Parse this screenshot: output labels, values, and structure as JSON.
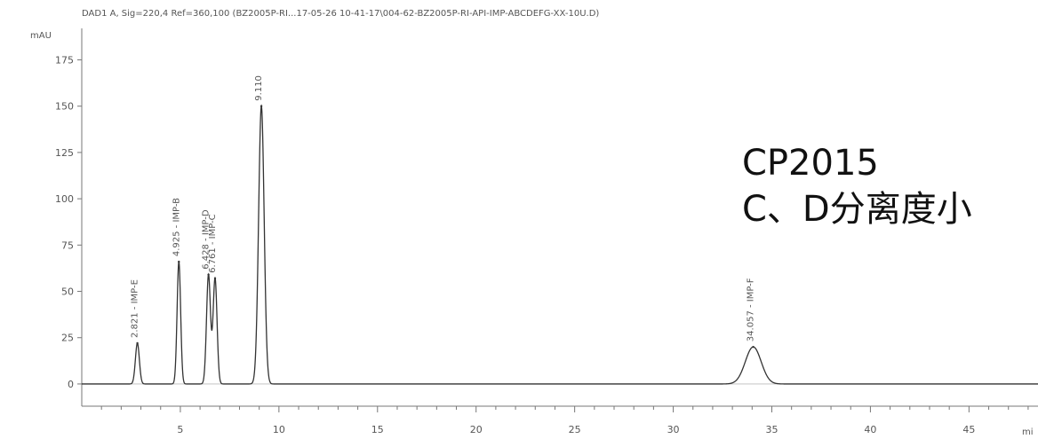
{
  "header": {
    "title": "DAD1 A, Sig=220,4 Ref=360,100 (BZ2005P-RI...17-05-26 10-41-17\\004-62-BZ2005P-RI-API-IMP-ABCDEFG-XX-10U.D)"
  },
  "annotation": {
    "line1": "CP2015",
    "line2": "C、D分离度小"
  },
  "chart_data": {
    "type": "line",
    "title": "DAD1 A, Sig=220,4 Ref=360,100 (BZ2005P-RI...17-05-26 10-41-17\\004-62-BZ2005P-RI-API-IMP-ABCDEFG-XX-10U.D)",
    "ylabel": "mAU",
    "xlabel": "mi",
    "xlim": [
      0,
      48.5
    ],
    "ylim": [
      -12,
      192
    ],
    "x_ticks": [
      5,
      10,
      15,
      20,
      25,
      30,
      35,
      40,
      45
    ],
    "x_tick_labels": [
      "5",
      "10",
      "15",
      "20",
      "25",
      "30",
      "35",
      "40",
      "45"
    ],
    "y_ticks": [
      0,
      25,
      50,
      75,
      100,
      125,
      150,
      175
    ],
    "y_tick_labels": [
      "0",
      "25",
      "50",
      "75",
      "100",
      "125",
      "150",
      "175"
    ],
    "grid": false,
    "baseline": 0,
    "series_color": "#333333",
    "peaks": [
      {
        "rt": 2.821,
        "height": 22,
        "width": 0.1,
        "label": "2.821 - IMP-E"
      },
      {
        "rt": 4.925,
        "height": 66,
        "width": 0.09,
        "label": "4.925 - IMP-B"
      },
      {
        "rt": 6.428,
        "height": 59,
        "width": 0.1,
        "label": "6.428 - IMP-D"
      },
      {
        "rt": 6.761,
        "height": 57,
        "width": 0.1,
        "label": "6.761 - IMP-C"
      },
      {
        "rt": 9.11,
        "height": 150,
        "width": 0.14,
        "label": "9.110"
      },
      {
        "rt": 34.057,
        "height": 20,
        "width": 0.4,
        "label": "34.057 - IMP-F"
      }
    ]
  }
}
